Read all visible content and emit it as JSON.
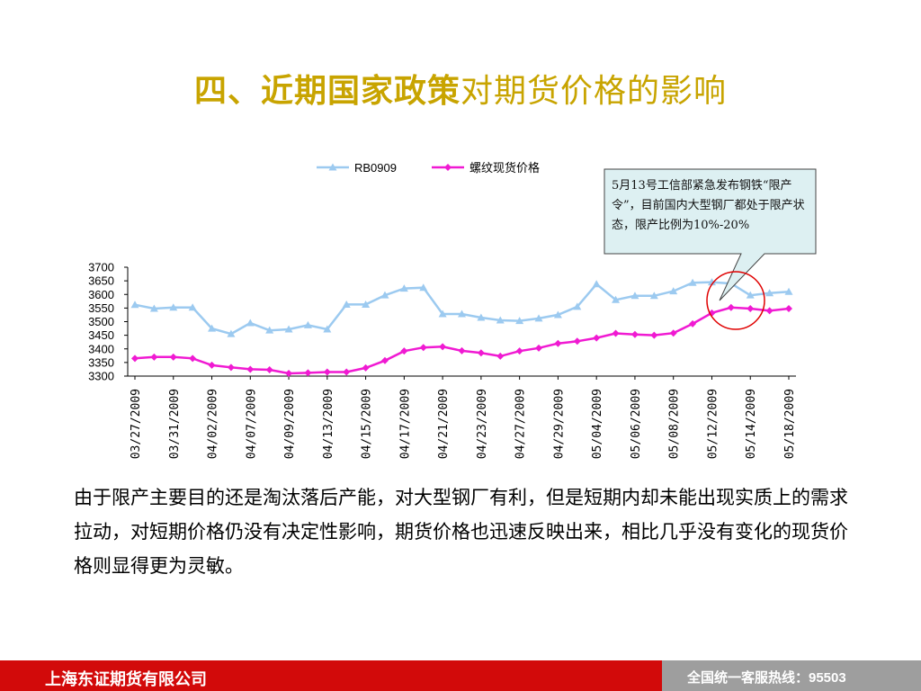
{
  "title": {
    "part1": "四、近期国家政策",
    "part2": "对期货价格的影响"
  },
  "callout": {
    "text": "5月13号工信部紧急发布钢铁“限产令”，目前国内大型钢厂都处于限产状态，限产比例为10%-20%"
  },
  "body_text": "由于限产主要目的还是淘汰落后产能，对大型钢厂有利，但是短期内却未能出现实质上的需求拉动，对短期价格仍没有决定性影响，期货价格也迅速反映出来，相比几乎没有变化的现货价格则显得更为灵敏。",
  "footer": {
    "company": "上海东证期货有限公司",
    "hotline": "全国统一客服热线：95503"
  },
  "colors": {
    "title": "#c8a400",
    "series_futures": "#9ccaf0",
    "series_spot": "#f01ad2",
    "highlight_circle": "#e00000",
    "footer_red": "#d20a0a",
    "footer_gray": "#9e9e9e"
  },
  "chart_data": {
    "type": "line",
    "title": "",
    "xlabel": "",
    "ylabel": "",
    "ylim": [
      3300,
      3700
    ],
    "yticks": [
      3300,
      3350,
      3400,
      3450,
      3500,
      3550,
      3600,
      3650,
      3700
    ],
    "legend_position": "top",
    "grid": false,
    "x": [
      "03/27/2009",
      "03/30/2009",
      "03/31/2009",
      "04/01/2009",
      "04/02/2009",
      "04/03/2009",
      "04/07/2009",
      "04/08/2009",
      "04/09/2009",
      "04/10/2009",
      "04/13/2009",
      "04/14/2009",
      "04/15/2009",
      "04/16/2009",
      "04/17/2009",
      "04/20/2009",
      "04/21/2009",
      "04/22/2009",
      "04/23/2009",
      "04/24/2009",
      "04/27/2009",
      "04/28/2009",
      "04/29/2009",
      "04/30/2009",
      "05/04/2009",
      "05/05/2009",
      "05/06/2009",
      "05/07/2009",
      "05/08/2009",
      "05/11/2009",
      "05/12/2009",
      "05/13/2009",
      "05/14/2009",
      "05/15/2009",
      "05/18/2009"
    ],
    "tick_labels": [
      "03/27/2009",
      "03/31/2009",
      "04/02/2009",
      "04/07/2009",
      "04/09/2009",
      "04/13/2009",
      "04/15/2009",
      "04/17/2009",
      "04/21/2009",
      "04/23/2009",
      "04/27/2009",
      "04/29/2009",
      "05/04/2009",
      "05/06/2009",
      "05/08/2009",
      "05/12/2009",
      "05/14/2009",
      "05/18/2009"
    ],
    "series": [
      {
        "name": "RB0909",
        "marker": "triangle",
        "color": "#9ccaf0",
        "values": [
          3562,
          3548,
          3552,
          3552,
          3475,
          3455,
          3495,
          3468,
          3472,
          3487,
          3472,
          3563,
          3563,
          3597,
          3622,
          3625,
          3528,
          3528,
          3515,
          3505,
          3503,
          3512,
          3525,
          3555,
          3638,
          3580,
          3595,
          3595,
          3612,
          3643,
          3645,
          3640,
          3597,
          3605,
          3610
        ]
      },
      {
        "name": "螺纹现货价格",
        "marker": "diamond",
        "color": "#f01ad2",
        "values": [
          3365,
          3370,
          3370,
          3365,
          3340,
          3332,
          3325,
          3323,
          3310,
          3312,
          3315,
          3315,
          3330,
          3357,
          3392,
          3405,
          3408,
          3393,
          3385,
          3373,
          3392,
          3403,
          3420,
          3428,
          3440,
          3457,
          3453,
          3450,
          3458,
          3492,
          3532,
          3552,
          3548,
          3540,
          3548
        ]
      }
    ]
  }
}
